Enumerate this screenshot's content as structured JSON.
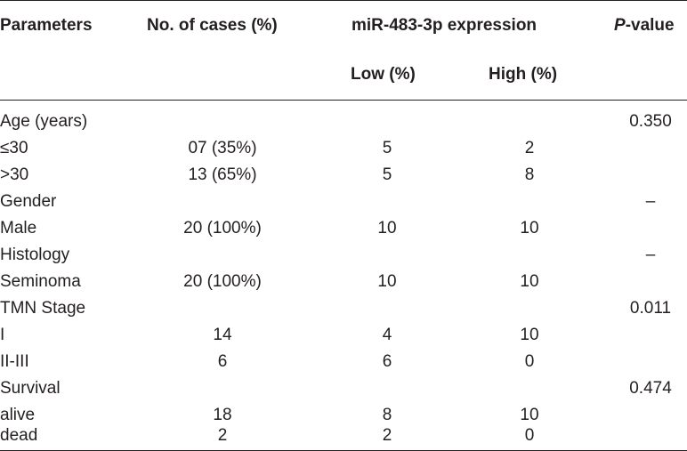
{
  "header": {
    "parameters": "Parameters",
    "cases": "No. of cases (%)",
    "expression": "miR-483-3p expression",
    "pvalue_italic": "P",
    "pvalue_rest": "-value",
    "low": "Low (%)",
    "high": "High (%)"
  },
  "rows": [
    {
      "param": "Age (years)",
      "cases": "",
      "low": "",
      "high": "",
      "p": "0.350"
    },
    {
      "param": "≤30",
      "cases": "07 (35%)",
      "low": "5",
      "high": "2",
      "p": ""
    },
    {
      "param": ">30",
      "cases": "13 (65%)",
      "low": "5",
      "high": "8",
      "p": ""
    },
    {
      "param": "Gender",
      "cases": "",
      "low": "",
      "high": "",
      "p": "–"
    },
    {
      "param": "Male",
      "cases": "20 (100%)",
      "low": "10",
      "high": "10",
      "p": ""
    },
    {
      "param": "Histology",
      "cases": "",
      "low": "",
      "high": "",
      "p": "–"
    },
    {
      "param": "Seminoma",
      "cases": "20 (100%)",
      "low": "10",
      "high": "10",
      "p": ""
    },
    {
      "param": "TMN Stage",
      "cases": "",
      "low": "",
      "high": "",
      "p": "0.011"
    },
    {
      "param": "I",
      "cases": "14",
      "low": "4",
      "high": "10",
      "p": ""
    },
    {
      "param": "II-III",
      "cases": "6",
      "low": "6",
      "high": "0",
      "p": ""
    },
    {
      "param": "Survival",
      "cases": "",
      "low": "",
      "high": "",
      "p": "0.474"
    },
    {
      "param": "alive",
      "cases": "18",
      "low": "8",
      "high": "10",
      "p": ""
    },
    {
      "param": "dead",
      "cases": "2",
      "low": "2",
      "high": "0",
      "p": ""
    }
  ]
}
